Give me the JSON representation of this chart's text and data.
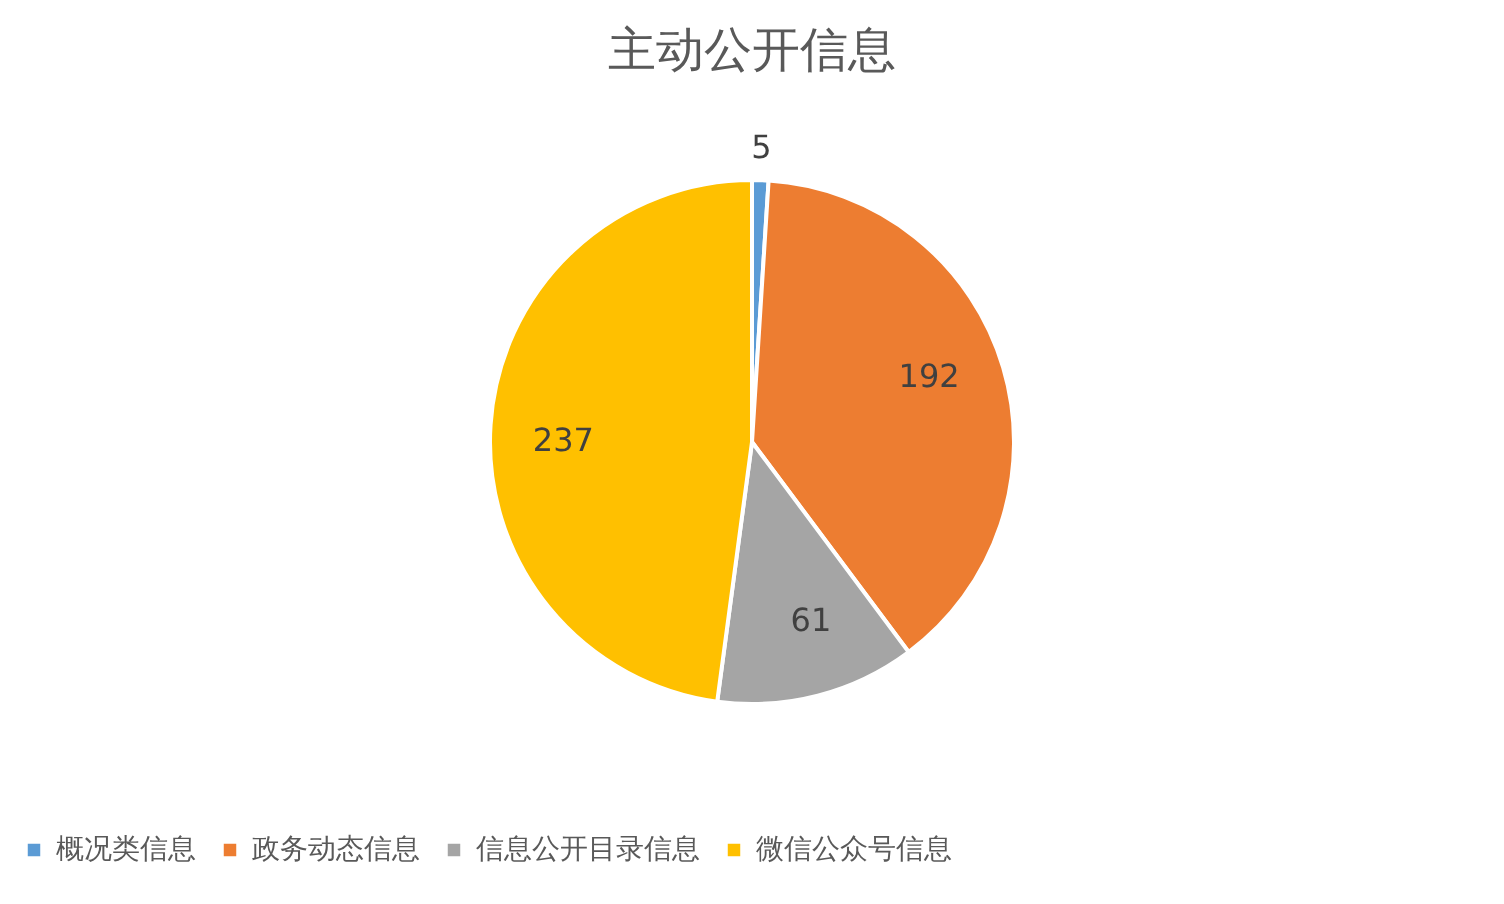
{
  "chart_data": {
    "type": "pie",
    "title": "主动公开信息",
    "categories": [
      "概况类信息",
      "政务动态信息",
      "信息公开目录信息",
      "微信公众号信息"
    ],
    "values": [
      5,
      192,
      61,
      237
    ],
    "colors": [
      "#5b9bd5",
      "#ed7d31",
      "#a5a5a5",
      "#ffc000"
    ],
    "data_labels": true,
    "legend": "bottom"
  }
}
